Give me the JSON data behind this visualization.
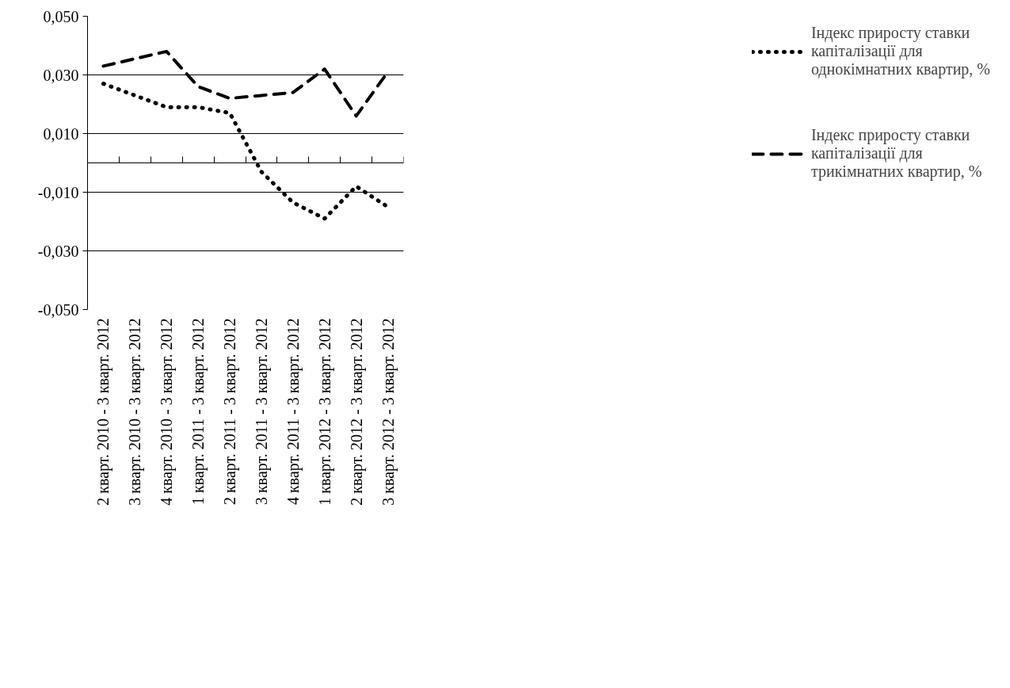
{
  "chart_data": {
    "type": "line",
    "categories": [
      "2 кварт. 2010 - 3 кварт. 2012",
      "3 кварт. 2010 - 3 кварт. 2012",
      "4 кварт. 2010 - 3 кварт. 2012",
      "1 кварт. 2011 - 3 кварт. 2012",
      "2 кварт. 2011 - 3 кварт. 2012",
      "3 кварт. 2011 - 3 кварт. 2012",
      "4 кварт. 2011 - 3 кварт. 2012",
      "1 кварт. 2012 - 3 кварт. 2012",
      "2 кварт. 2012 - 3 кварт. 2012",
      "3 кварт. 2012 - 3 кварт. 2012"
    ],
    "series": [
      {
        "name": "Індекс приросту ставки капіталізації для однокімнатних квартир, %",
        "color": "#000000",
        "line_style": "dotted",
        "values": [
          0.027,
          0.023,
          0.019,
          0.019,
          0.017,
          -0.003,
          -0.0135,
          -0.019,
          -0.008,
          -0.015
        ]
      },
      {
        "name": "Індекс приросту ставки капіталізації для трикімнатних квартир, %",
        "color": "#000000",
        "line_style": "dashed",
        "values": [
          0.033,
          0.0355,
          0.038,
          0.026,
          0.022,
          0.023,
          0.024,
          0.032,
          0.016,
          0.031
        ]
      }
    ],
    "ylim": [
      -0.05,
      0.05
    ],
    "yticks": [
      {
        "value": -0.05,
        "label": "-0,050"
      },
      {
        "value": -0.03,
        "label": "-0,030"
      },
      {
        "value": -0.01,
        "label": "-0,010"
      },
      {
        "value": 0.01,
        "label": "0,010"
      },
      {
        "value": 0.03,
        "label": "0,030"
      },
      {
        "value": 0.05,
        "label": "0,050"
      }
    ],
    "grid": "y",
    "legend": "right",
    "marker": "none"
  }
}
